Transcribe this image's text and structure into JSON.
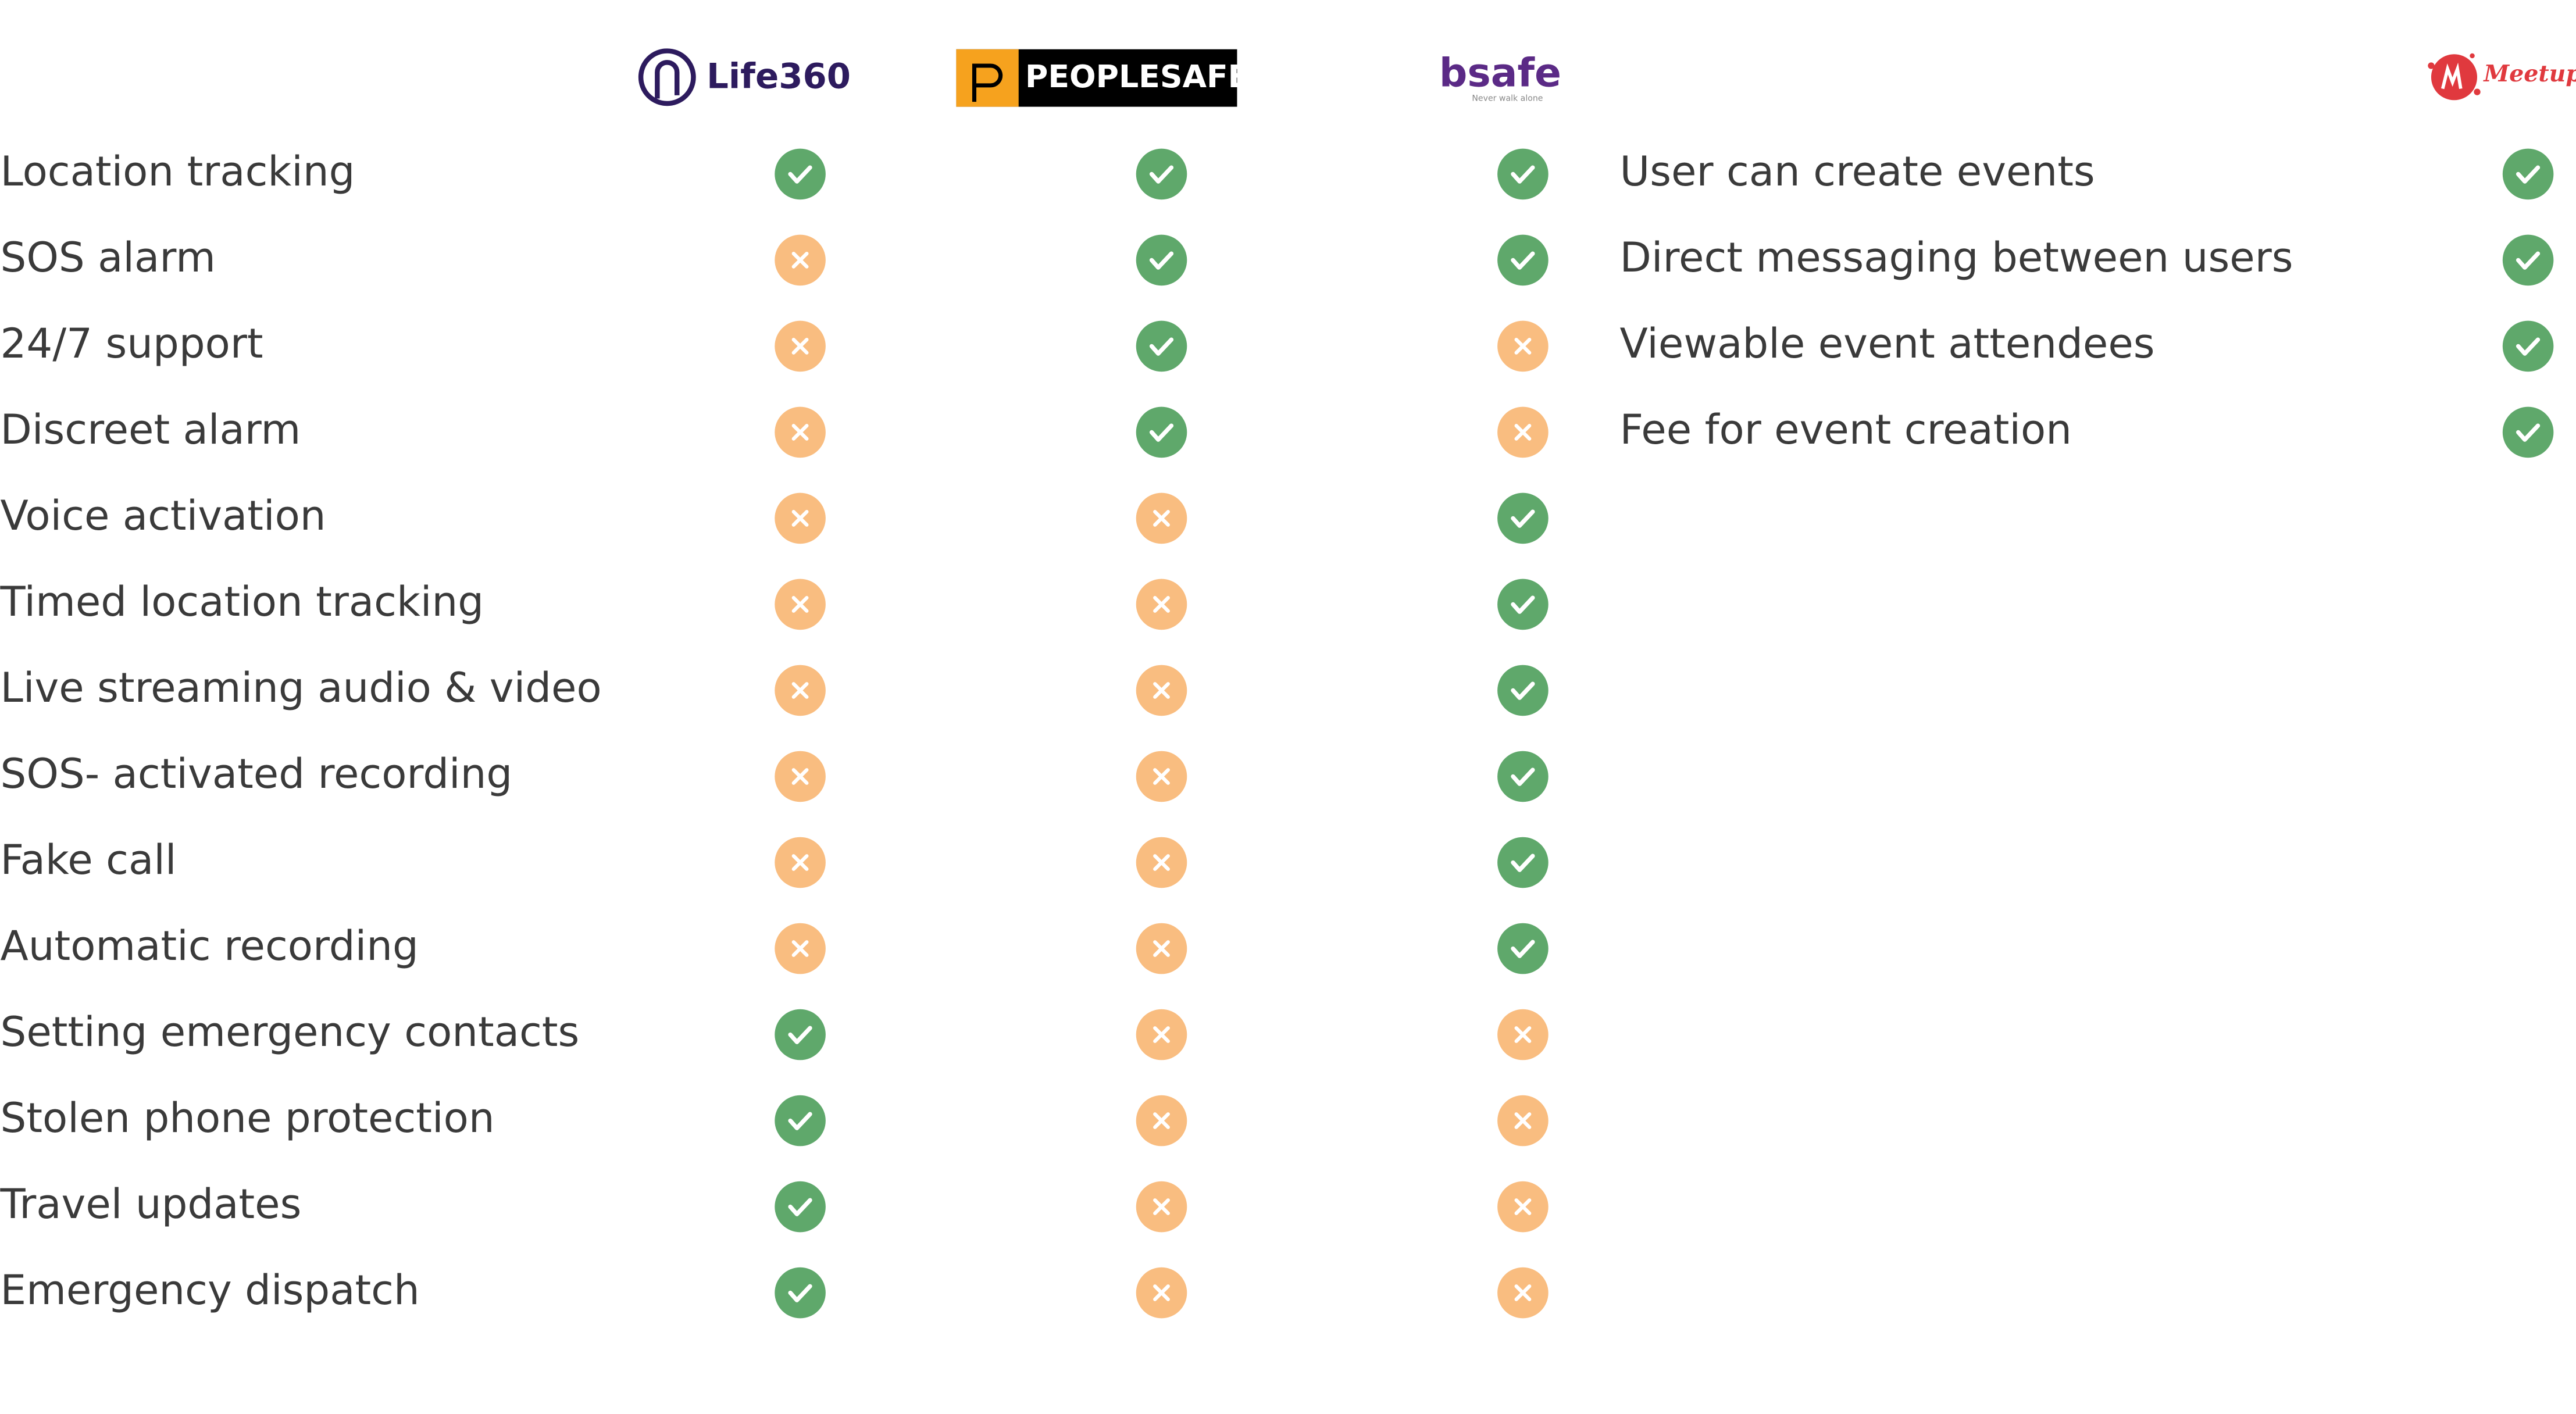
{
  "left_table": {
    "brands": [
      "Life360",
      "PEOPLESAFE",
      "bsafe"
    ],
    "bsafe_tagline": "Never walk alone",
    "rows": [
      {
        "feature": "Location tracking",
        "values": [
          true,
          true,
          true
        ]
      },
      {
        "feature": "SOS alarm",
        "values": [
          false,
          true,
          true
        ]
      },
      {
        "feature": "24/7 support",
        "values": [
          false,
          true,
          false
        ]
      },
      {
        "feature": "Discreet alarm",
        "values": [
          false,
          true,
          false
        ]
      },
      {
        "feature": "Voice activation",
        "values": [
          false,
          false,
          true
        ]
      },
      {
        "feature": "Timed location tracking",
        "values": [
          false,
          false,
          true
        ]
      },
      {
        "feature": "Live streaming audio & video",
        "values": [
          false,
          false,
          true
        ]
      },
      {
        "feature": "SOS- activated recording",
        "values": [
          false,
          false,
          true
        ]
      },
      {
        "feature": "Fake call",
        "values": [
          false,
          false,
          true
        ]
      },
      {
        "feature": "Automatic recording",
        "values": [
          false,
          false,
          true
        ]
      },
      {
        "feature": "Setting emergency contacts",
        "values": [
          true,
          false,
          false
        ]
      },
      {
        "feature": "Stolen phone protection",
        "values": [
          true,
          false,
          false
        ]
      },
      {
        "feature": "Travel updates",
        "values": [
          true,
          false,
          false
        ]
      },
      {
        "feature": "Emergency dispatch",
        "values": [
          true,
          false,
          false
        ]
      }
    ]
  },
  "right_table": {
    "brand": "Meetup",
    "rows": [
      {
        "feature": "User can create events",
        "value": true
      },
      {
        "feature": "Direct messaging between users",
        "value": true
      },
      {
        "feature": "Viewable event attendees",
        "value": true
      },
      {
        "feature": "Fee for event creation",
        "value": true
      }
    ]
  }
}
